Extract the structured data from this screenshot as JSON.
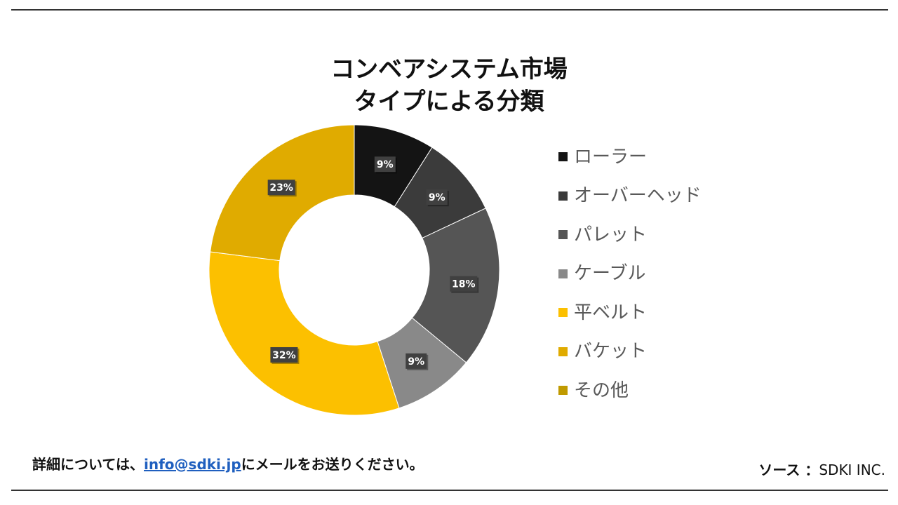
{
  "chart_data": {
    "type": "pie",
    "title_lines": [
      "コンベアシステム市場",
      "タイプによる分類"
    ],
    "legend_position": "right",
    "categories": [
      "ローラー",
      "オーバーヘッド",
      "パレット",
      "ケーブル",
      "平ベルト",
      "バケット",
      "その他"
    ],
    "values": [
      9,
      9,
      18,
      9,
      32,
      23,
      0
    ],
    "labels": [
      "9%",
      "9%",
      "18%",
      "9%",
      "32%",
      "23%",
      ""
    ],
    "colors": [
      "#141414",
      "#3b3b3b",
      "#555555",
      "#898989",
      "#fcc000",
      "#e0ab00",
      "#c09a00"
    ]
  },
  "footer": {
    "note_prefix": "詳細については、",
    "email": "info@sdki.jp",
    "note_suffix": "にメールをお送りください。",
    "source_key": "ソース ：",
    "source_value": "SDKI INC."
  }
}
